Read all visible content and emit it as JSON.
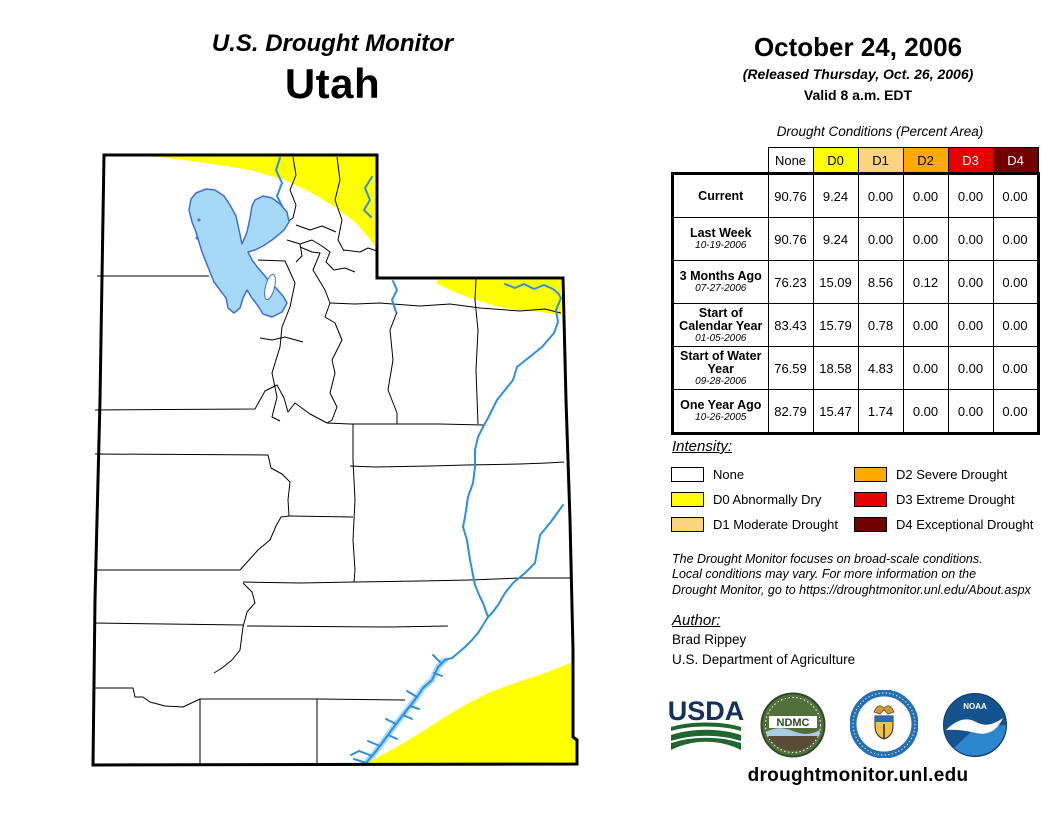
{
  "page": {
    "title_line1": "U.S. Drought Monitor",
    "title_line2": "Utah"
  },
  "header": {
    "date": "October 24, 2006",
    "released": "(Released Thursday, Oct. 26, 2006)",
    "valid": "Valid 8 a.m. EDT"
  },
  "table": {
    "title": "Drought Conditions (Percent Area)",
    "columns": [
      {
        "label": "None",
        "bg": "#FFFFFF",
        "fg": "#000000"
      },
      {
        "label": "D0",
        "bg": "#FFFF00",
        "fg": "#000000"
      },
      {
        "label": "D1",
        "bg": "#FCD37F",
        "fg": "#000000"
      },
      {
        "label": "D2",
        "bg": "#FFAA00",
        "fg": "#000000"
      },
      {
        "label": "D3",
        "bg": "#E60000",
        "fg": "#FFFFFF"
      },
      {
        "label": "D4",
        "bg": "#730000",
        "fg": "#FFFFFF"
      }
    ],
    "rows": [
      {
        "label": "Current",
        "sublabel": "",
        "values": [
          "90.76",
          "9.24",
          "0.00",
          "0.00",
          "0.00",
          "0.00"
        ]
      },
      {
        "label": "Last Week",
        "sublabel": "10-19-2006",
        "values": [
          "90.76",
          "9.24",
          "0.00",
          "0.00",
          "0.00",
          "0.00"
        ]
      },
      {
        "label": "3 Months Ago",
        "sublabel": "07-27-2006",
        "values": [
          "76.23",
          "15.09",
          "8.56",
          "0.12",
          "0.00",
          "0.00"
        ]
      },
      {
        "label": "Start of Calendar Year",
        "sublabel": "01-05-2006",
        "values": [
          "83.43",
          "15.79",
          "0.78",
          "0.00",
          "0.00",
          "0.00"
        ]
      },
      {
        "label": "Start of Water Year",
        "sublabel": "09-28-2006",
        "values": [
          "76.59",
          "18.58",
          "4.83",
          "0.00",
          "0.00",
          "0.00"
        ]
      },
      {
        "label": "One Year Ago",
        "sublabel": "10-26-2005",
        "values": [
          "82.79",
          "15.47",
          "1.74",
          "0.00",
          "0.00",
          "0.00"
        ]
      }
    ]
  },
  "legend": {
    "title": "Intensity:",
    "items": [
      {
        "code": "none",
        "label": "None",
        "color": "#FFFFFF"
      },
      {
        "code": "d0",
        "label": "D0 Abnormally Dry",
        "color": "#FFFF00"
      },
      {
        "code": "d1",
        "label": "D1 Moderate Drought",
        "color": "#FCD37F"
      },
      {
        "code": "d2",
        "label": "D2 Severe Drought",
        "color": "#FFAA00"
      },
      {
        "code": "d3",
        "label": "D3 Extreme Drought",
        "color": "#E60000"
      },
      {
        "code": "d4",
        "label": "D4 Exceptional Drought",
        "color": "#730000"
      }
    ]
  },
  "disclaimer": {
    "line1": "The Drought Monitor focuses on broad-scale conditions.",
    "line2": "Local conditions may vary. For more information on the",
    "line3": "Drought Monitor, go to https://droughtmonitor.unl.edu/About.aspx"
  },
  "author": {
    "heading": "Author:",
    "name": "Brad Rippey",
    "org": "U.S. Department of Agriculture"
  },
  "footer": {
    "website": "droughtmonitor.unl.edu"
  },
  "logos": {
    "usda": {
      "text": "USDA"
    },
    "ndmc": {
      "text": "NDMC"
    },
    "doc": {
      "text": ""
    },
    "noaa": {
      "text": "NOAA"
    }
  },
  "map": {
    "state": "Utah",
    "features": [
      "state-border",
      "county-boundaries",
      "d0-band-north",
      "d0-patch-northeast",
      "d0-wedge-southeast",
      "great-salt-lake",
      "antelope-island",
      "bear-river",
      "green-river",
      "colorado-river",
      "lake-powell"
    ],
    "colors": {
      "d0": "#FFFF00",
      "d1": "#FCD37F",
      "d2": "#FFAA00",
      "d3": "#E60000",
      "d4": "#730000",
      "water_fill": "#A6D9F7",
      "river": "#2E8FE0",
      "lake_outline": "#3E6FD8"
    }
  }
}
